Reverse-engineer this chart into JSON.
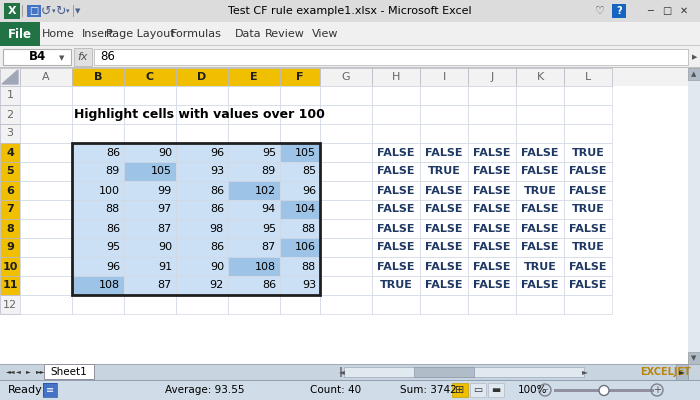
{
  "title_bar": "Test CF rule example1.xlsx - Microsoft Excel",
  "cell_ref": "B4",
  "formula_val": "86",
  "col_headers": [
    "A",
    "B",
    "C",
    "D",
    "E",
    "F",
    "G",
    "H",
    "I",
    "J",
    "K",
    "L"
  ],
  "row_headers": [
    "1",
    "2",
    "3",
    "4",
    "5",
    "6",
    "7",
    "8",
    "9",
    "10",
    "11",
    "12"
  ],
  "heading_text": "Highlight cells with values over 100",
  "data_values": [
    [
      86,
      90,
      96,
      95,
      105
    ],
    [
      89,
      105,
      93,
      89,
      85
    ],
    [
      100,
      99,
      86,
      102,
      96
    ],
    [
      88,
      97,
      86,
      94,
      104
    ],
    [
      86,
      87,
      98,
      95,
      88
    ],
    [
      95,
      90,
      86,
      87,
      106
    ],
    [
      96,
      91,
      90,
      108,
      88
    ],
    [
      108,
      87,
      92,
      86,
      93
    ]
  ],
  "bool_values": [
    [
      "FALSE",
      "FALSE",
      "FALSE",
      "FALSE",
      "TRUE"
    ],
    [
      "FALSE",
      "TRUE",
      "FALSE",
      "FALSE",
      "FALSE"
    ],
    [
      "FALSE",
      "FALSE",
      "FALSE",
      "TRUE",
      "FALSE"
    ],
    [
      "FALSE",
      "FALSE",
      "FALSE",
      "FALSE",
      "TRUE"
    ],
    [
      "FALSE",
      "FALSE",
      "FALSE",
      "FALSE",
      "FALSE"
    ],
    [
      "FALSE",
      "FALSE",
      "FALSE",
      "FALSE",
      "TRUE"
    ],
    [
      "FALSE",
      "FALSE",
      "FALSE",
      "TRUE",
      "FALSE"
    ],
    [
      "TRUE",
      "FALSE",
      "FALSE",
      "FALSE",
      "FALSE"
    ]
  ],
  "status_bar_text": "Ready",
  "avg_text": "Average: 93.55",
  "count_text": "Count: 40",
  "sum_text": "Sum: 3742",
  "zoom_text": "100%",
  "menu_items": [
    "File",
    "Home",
    "Insert",
    "Page Layout",
    "Formulas",
    "Data",
    "Review",
    "View"
  ],
  "title_bg": "#d4d0c8",
  "ribbon_bg": "#f0f0f0",
  "ribbon_separator": "#c0c0c0",
  "file_btn_bg": "#217346",
  "formula_bar_bg": "#f0f0f0",
  "sheet_bg": "#ffffff",
  "col_header_bg": "#f2f2f2",
  "col_header_selected_bg": "#f0c000",
  "row_header_bg": "#f2f2f2",
  "row_header_selected_bg": "#f0c000",
  "cell_normal_bg": "#cce0f5",
  "cell_over100_bg": "#9dc3e6",
  "grid_color": "#d0d8e4",
  "header_border": "#b0b8c8",
  "border_thick": "#1f1f1f",
  "bool_color": "#1f3864",
  "status_bg": "#d0dce8",
  "tab_area_bg": "#c8d4e0",
  "scrollbar_bg": "#e0e8f0",
  "scrollbar_thumb": "#b0bcc8",
  "exceljet_color": "#b8860b"
}
